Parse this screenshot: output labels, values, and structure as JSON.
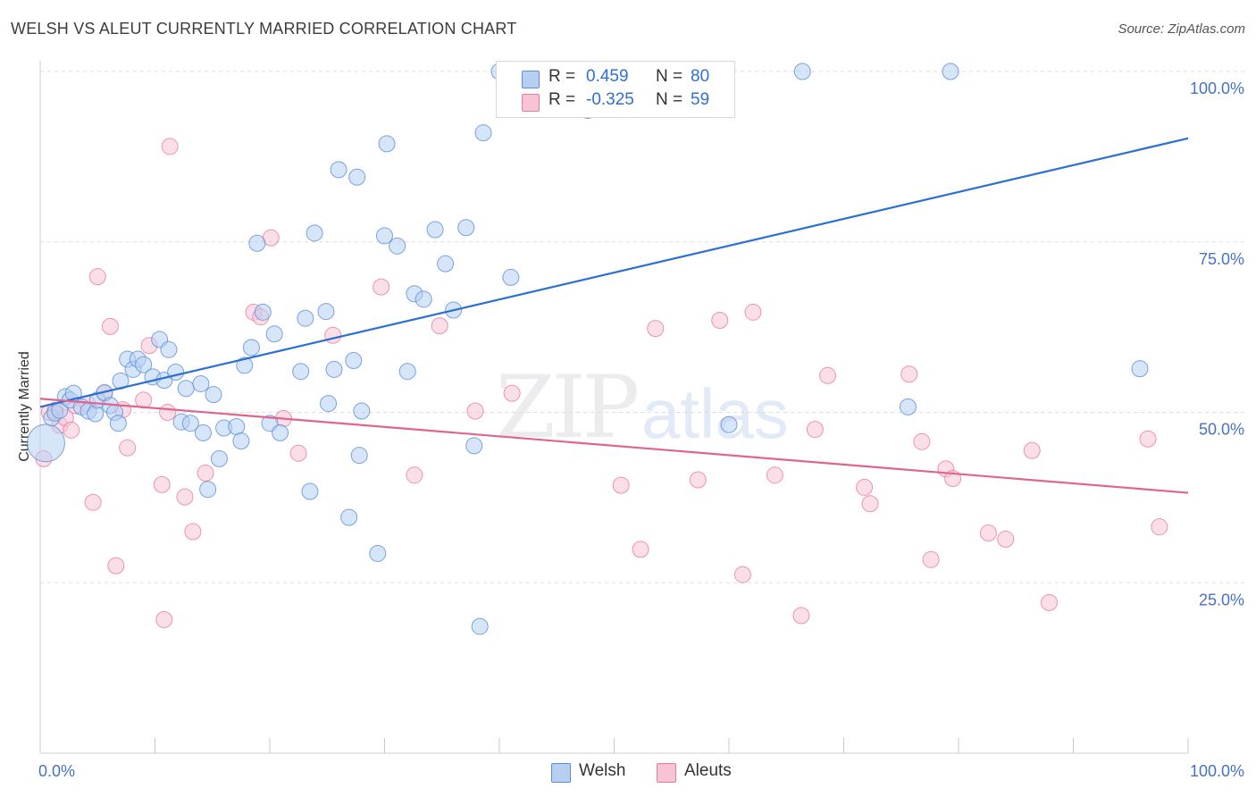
{
  "title": "WELSH VS ALEUT CURRENTLY MARRIED CORRELATION CHART",
  "source": "Source: ZipAtlas.com",
  "watermark": {
    "zip": "ZIP",
    "atlas": "atlas"
  },
  "legend": {
    "welsh": {
      "r_label": "R =",
      "r_value": "0.459",
      "n_label": "N =",
      "n_value": "80"
    },
    "aleut": {
      "r_label": "R =",
      "r_value": "-0.325",
      "n_label": "N =",
      "n_value": "59"
    }
  },
  "bottom_legend": {
    "welsh": "Welsh",
    "aleuts": "Aleuts"
  },
  "colors": {
    "welsh": "#5b8ed6",
    "welsh_fill": "#b7d0f2",
    "aleut": "#e87aa0",
    "aleut_fill": "#f7c4d5",
    "welsh_line": "#2a6fd1",
    "aleut_line": "#e0648f",
    "tick": "#4472c4"
  },
  "chart_data": {
    "type": "scatter",
    "title": "WELSH VS ALEUT CURRENTLY MARRIED CORRELATION CHART",
    "xlabel": "",
    "ylabel": "Currently Married",
    "xlim": [
      0,
      100
    ],
    "ylim": [
      0,
      100
    ],
    "x_tick_labels": [
      "0.0%",
      "100.0%"
    ],
    "y_tick_labels": [
      "25.0%",
      "50.0%",
      "75.0%",
      "100.0%"
    ],
    "y_ticks": [
      25,
      50,
      75,
      100
    ],
    "grid": true,
    "legend_position": "top-center",
    "series": [
      {
        "name": "Welsh",
        "r": 0.459,
        "n": 80,
        "trend": [
          [
            0,
            50.8
          ],
          [
            100,
            90.2
          ]
        ],
        "points": [
          [
            0.5,
            45.5,
            28
          ],
          [
            1,
            49.2,
            12
          ],
          [
            1.3,
            49.9,
            12
          ],
          [
            1.7,
            50.3,
            12
          ],
          [
            2.2,
            52.3,
            12
          ],
          [
            2.6,
            51.8,
            12
          ],
          [
            2.9,
            52.8,
            12
          ],
          [
            3.6,
            50.8,
            12
          ],
          [
            4.2,
            50.2,
            12
          ],
          [
            4.8,
            49.8,
            12
          ],
          [
            5.0,
            51.8,
            12
          ],
          [
            5.6,
            52.9,
            12
          ],
          [
            6.1,
            51.0,
            12
          ],
          [
            6.5,
            50.0,
            12
          ],
          [
            6.8,
            48.4,
            12
          ],
          [
            7.0,
            54.6,
            12
          ],
          [
            7.6,
            57.8,
            12
          ],
          [
            8.1,
            56.3,
            12
          ],
          [
            8.5,
            57.8,
            12
          ],
          [
            9.0,
            57.0,
            12
          ],
          [
            9.8,
            55.2,
            12
          ],
          [
            10.4,
            60.7,
            12
          ],
          [
            10.8,
            54.7,
            12
          ],
          [
            11.2,
            59.2,
            12
          ],
          [
            11.8,
            55.9,
            12
          ],
          [
            12.3,
            48.6,
            12
          ],
          [
            12.7,
            53.5,
            12
          ],
          [
            13.1,
            48.4,
            12
          ],
          [
            14.0,
            54.2,
            12
          ],
          [
            14.2,
            47.0,
            12
          ],
          [
            14.6,
            38.7,
            12
          ],
          [
            15.1,
            52.6,
            12
          ],
          [
            15.6,
            43.2,
            12
          ],
          [
            16.0,
            47.7,
            12
          ],
          [
            17.1,
            47.9,
            12
          ],
          [
            17.5,
            45.8,
            12
          ],
          [
            17.8,
            56.9,
            12
          ],
          [
            18.4,
            59.5,
            12
          ],
          [
            18.9,
            74.8,
            12
          ],
          [
            19.4,
            64.7,
            12
          ],
          [
            20.0,
            48.4,
            12
          ],
          [
            20.4,
            61.5,
            12
          ],
          [
            20.9,
            47.0,
            12
          ],
          [
            22.7,
            56.0,
            12
          ],
          [
            23.1,
            63.8,
            12
          ],
          [
            23.5,
            38.4,
            12
          ],
          [
            23.9,
            76.3,
            12
          ],
          [
            24.9,
            64.8,
            12
          ],
          [
            25.1,
            51.3,
            12
          ],
          [
            25.6,
            56.3,
            12
          ],
          [
            26.0,
            85.6,
            12
          ],
          [
            26.9,
            34.6,
            12
          ],
          [
            27.3,
            57.6,
            12
          ],
          [
            27.6,
            84.5,
            12
          ],
          [
            27.8,
            43.7,
            12
          ],
          [
            28.0,
            50.2,
            12
          ],
          [
            29.4,
            29.3,
            12
          ],
          [
            30.0,
            75.9,
            12
          ],
          [
            30.2,
            89.4,
            12
          ],
          [
            31.1,
            74.4,
            12
          ],
          [
            32.0,
            56.0,
            12
          ],
          [
            32.6,
            67.4,
            12
          ],
          [
            33.4,
            66.6,
            12
          ],
          [
            34.4,
            76.8,
            12
          ],
          [
            35.3,
            71.8,
            12
          ],
          [
            36.0,
            65.0,
            12
          ],
          [
            37.1,
            77.1,
            12
          ],
          [
            37.8,
            45.1,
            12
          ],
          [
            38.3,
            18.6,
            12
          ],
          [
            38.6,
            91.0,
            12
          ],
          [
            40.0,
            100.0,
            12
          ],
          [
            41.0,
            69.8,
            12
          ],
          [
            45.6,
            100.0,
            12
          ],
          [
            47.7,
            94.3,
            12
          ],
          [
            54.4,
            100.0,
            12
          ],
          [
            60.0,
            48.2,
            12
          ],
          [
            66.4,
            100.0,
            12
          ],
          [
            75.6,
            50.8,
            12
          ],
          [
            79.3,
            100.0,
            12
          ],
          [
            95.8,
            56.4,
            12
          ]
        ]
      },
      {
        "name": "Aleuts",
        "r": -0.325,
        "n": 59,
        "trend": [
          [
            0,
            52.0
          ],
          [
            100,
            38.2
          ]
        ],
        "points": [
          [
            0.3,
            43.2,
            12
          ],
          [
            0.8,
            50.0,
            12
          ],
          [
            1.3,
            50.3,
            12
          ],
          [
            1.7,
            48.1,
            12
          ],
          [
            2.2,
            49.2,
            12
          ],
          [
            2.7,
            47.4,
            12
          ],
          [
            3.1,
            51.0,
            12
          ],
          [
            4.1,
            51.3,
            12
          ],
          [
            4.6,
            36.8,
            12
          ],
          [
            5.0,
            69.9,
            12
          ],
          [
            5.6,
            52.8,
            12
          ],
          [
            6.1,
            62.6,
            12
          ],
          [
            6.6,
            27.5,
            12
          ],
          [
            7.2,
            50.4,
            12
          ],
          [
            7.6,
            44.8,
            12
          ],
          [
            9.0,
            51.8,
            12
          ],
          [
            9.5,
            59.8,
            12
          ],
          [
            10.6,
            39.4,
            12
          ],
          [
            10.8,
            19.6,
            12
          ],
          [
            11.1,
            50.0,
            12
          ],
          [
            11.3,
            89.0,
            12
          ],
          [
            12.6,
            37.6,
            12
          ],
          [
            13.3,
            32.5,
            12
          ],
          [
            14.4,
            41.1,
            12
          ],
          [
            18.6,
            64.7,
            12
          ],
          [
            19.2,
            64.0,
            12
          ],
          [
            20.1,
            75.6,
            12
          ],
          [
            21.2,
            49.1,
            12
          ],
          [
            22.5,
            44.0,
            12
          ],
          [
            25.5,
            61.3,
            12
          ],
          [
            29.7,
            68.4,
            12
          ],
          [
            32.6,
            40.8,
            12
          ],
          [
            34.8,
            62.7,
            12
          ],
          [
            37.9,
            50.2,
            12
          ],
          [
            41.1,
            52.8,
            12
          ],
          [
            50.6,
            39.3,
            12
          ],
          [
            52.3,
            29.9,
            12
          ],
          [
            53.6,
            62.3,
            12
          ],
          [
            57.3,
            40.1,
            12
          ],
          [
            59.2,
            63.5,
            12
          ],
          [
            61.2,
            26.2,
            12
          ],
          [
            62.1,
            64.7,
            12
          ],
          [
            64.0,
            40.8,
            12
          ],
          [
            66.3,
            20.2,
            12
          ],
          [
            67.5,
            47.5,
            12
          ],
          [
            68.6,
            55.4,
            12
          ],
          [
            71.8,
            39.0,
            12
          ],
          [
            72.3,
            36.6,
            12
          ],
          [
            75.7,
            55.6,
            12
          ],
          [
            76.8,
            45.7,
            12
          ],
          [
            77.6,
            28.4,
            12
          ],
          [
            78.9,
            41.7,
            12
          ],
          [
            79.5,
            40.3,
            12
          ],
          [
            82.6,
            32.3,
            12
          ],
          [
            84.1,
            31.4,
            12
          ],
          [
            86.4,
            44.4,
            12
          ],
          [
            87.9,
            22.1,
            12
          ],
          [
            96.5,
            46.1,
            12
          ],
          [
            97.5,
            33.2,
            12
          ]
        ]
      }
    ]
  }
}
